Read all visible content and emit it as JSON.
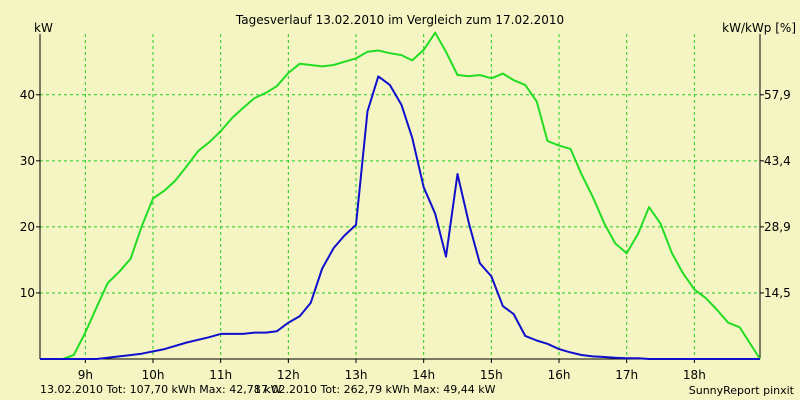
{
  "chart_data": {
    "type": "line",
    "title": "Tagesverlauf 13.02.2010 im Vergleich zum 17.02.2010",
    "ylabel_left": "kW",
    "ylabel_right": "kW/kWp [%]",
    "xlim": [
      8.33,
      18.97
    ],
    "ylim": [
      0,
      49.2
    ],
    "x_ticks": [
      {
        "value": 9,
        "label": "9h"
      },
      {
        "value": 10,
        "label": "10h"
      },
      {
        "value": 11,
        "label": "11h"
      },
      {
        "value": 12,
        "label": "12h"
      },
      {
        "value": 13,
        "label": "13h"
      },
      {
        "value": 14,
        "label": "14h"
      },
      {
        "value": 15,
        "label": "15h"
      },
      {
        "value": 16,
        "label": "16h"
      },
      {
        "value": 17,
        "label": "17h"
      },
      {
        "value": 18,
        "label": "18h"
      }
    ],
    "y_ticks_left": [
      10,
      20,
      30,
      40
    ],
    "y_ticks_right": [
      {
        "y": 10,
        "label": "14,5"
      },
      {
        "y": 20,
        "label": "28,9"
      },
      {
        "y": 30,
        "label": "43,4"
      },
      {
        "y": 40,
        "label": "57,9"
      }
    ],
    "grid": true,
    "series": [
      {
        "name": "17.02.2010",
        "color": "#22dd22",
        "x": [
          8.33,
          8.67,
          8.83,
          9.0,
          9.17,
          9.33,
          9.5,
          9.67,
          9.83,
          10.0,
          10.17,
          10.33,
          10.5,
          10.67,
          10.83,
          11.0,
          11.17,
          11.33,
          11.5,
          11.67,
          11.83,
          12.0,
          12.17,
          12.33,
          12.5,
          12.67,
          12.83,
          13.0,
          13.17,
          13.33,
          13.5,
          13.67,
          13.83,
          14.0,
          14.17,
          14.33,
          14.5,
          14.67,
          14.83,
          15.0,
          15.17,
          15.33,
          15.5,
          15.67,
          15.83,
          16.0,
          16.17,
          16.33,
          16.5,
          16.67,
          16.83,
          17.0,
          17.17,
          17.33,
          17.5,
          17.67,
          17.83,
          18.0,
          18.17,
          18.33,
          18.5,
          18.67,
          18.97
        ],
        "y": [
          0,
          0,
          0.6,
          4.0,
          7.9,
          11.5,
          13.2,
          15.2,
          20.0,
          24.3,
          25.5,
          27.0,
          29.2,
          31.5,
          32.8,
          34.5,
          36.5,
          38.0,
          39.5,
          40.3,
          41.3,
          43.3,
          44.7,
          44.5,
          44.3,
          44.5,
          45.0,
          45.5,
          46.5,
          46.7,
          46.3,
          46.0,
          45.2,
          46.8,
          49.4,
          46.5,
          43.0,
          42.8,
          43.0,
          42.5,
          43.2,
          42.2,
          41.5,
          39.0,
          33.0,
          32.3,
          31.8,
          28.0,
          24.5,
          20.5,
          17.5,
          16.0,
          19.0,
          23.0,
          20.5,
          16.0,
          13.0,
          10.5,
          9.2,
          7.5,
          5.5,
          4.8,
          0
        ],
        "note": "x/y arrays aligned by index"
      },
      {
        "name": "13.02.2010",
        "color": "#1010cc",
        "x": [
          8.33,
          8.83,
          9.17,
          9.5,
          9.83,
          10.17,
          10.5,
          10.83,
          11.0,
          11.17,
          11.33,
          11.5,
          11.67,
          11.83,
          12.0,
          12.17,
          12.33,
          12.5,
          12.67,
          12.83,
          13.0,
          13.17,
          13.33,
          13.5,
          13.67,
          13.83,
          14.0,
          14.17,
          14.33,
          14.5,
          14.67,
          14.83,
          15.0,
          15.17,
          15.33,
          15.5,
          15.67,
          15.83,
          16.0,
          16.17,
          16.33,
          16.5,
          16.67,
          16.83,
          17.0,
          17.17,
          17.33,
          17.5,
          17.67,
          17.83,
          18.0,
          18.17,
          18.33,
          18.5,
          18.97
        ],
        "y": [
          0,
          0,
          0,
          0.4,
          0.8,
          1.5,
          2.5,
          3.3,
          3.8,
          3.8,
          3.8,
          4.0,
          4.0,
          4.2,
          5.5,
          6.5,
          8.5,
          13.7,
          16.8,
          18.7,
          20.3,
          37.5,
          42.78,
          41.5,
          38.5,
          33.5,
          26.0,
          22.0,
          15.5,
          28.0,
          20.5,
          14.5,
          12.5,
          8.0,
          6.8,
          3.5,
          2.8,
          2.3,
          1.5,
          1.0,
          0.6,
          0.4,
          0.3,
          0.2,
          0.1,
          0.1,
          0.0,
          0.0,
          0.0,
          0.0,
          0.0,
          0.0,
          0.0,
          0.0,
          0
        ]
      }
    ],
    "footer": {
      "series1_text": "13.02.2010 Tot: 107,70 kWh Max: 42,78 kW",
      "series2_text": "17.02.2010 Tot: 262,79 kWh Max: 49,44 kW",
      "credit": "SunnyReport pinxit"
    },
    "colors": {
      "background": "#f5f5c4",
      "grid": "#22cc22",
      "axis": "#000000",
      "footer_series1": "#1010cc",
      "footer_series2": "#22aa22"
    }
  }
}
